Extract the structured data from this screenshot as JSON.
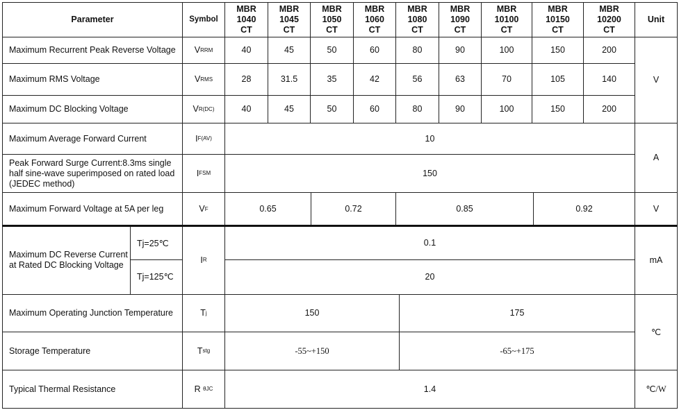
{
  "header": {
    "parameter": "Parameter",
    "symbol": "Symbol",
    "models": [
      "MBR\n1040\nCT",
      "MBR\n1045\nCT",
      "MBR\n1050\nCT",
      "MBR\n1060\nCT",
      "MBR\n1080\nCT",
      "MBR\n1090\nCT",
      "MBR\n10100\nCT",
      "MBR\n10150\nCT",
      "MBR\n10200\nCT"
    ],
    "unit": "Unit"
  },
  "rows": {
    "vrrm": {
      "param": "Maximum Recurrent Peak Reverse Voltage",
      "sym": "V",
      "sub": "RRM",
      "values": [
        "40",
        "45",
        "50",
        "60",
        "80",
        "90",
        "100",
        "150",
        "200"
      ]
    },
    "vrms": {
      "param": "Maximum RMS Voltage",
      "sym": "V",
      "sub": "RMS",
      "values": [
        "28",
        "31.5",
        "35",
        "42",
        "56",
        "63",
        "70",
        "105",
        "140"
      ]
    },
    "vdc": {
      "param": "Maximum DC Blocking Voltage",
      "sym": "V",
      "sub": "R(DC)",
      "values": [
        "40",
        "45",
        "50",
        "60",
        "80",
        "90",
        "100",
        "150",
        "200"
      ]
    },
    "voltage_unit": "V",
    "ifav": {
      "param": "Maximum Average Forward Current",
      "sym": "I",
      "sub": "F(AV)",
      "value": "10"
    },
    "ifsm": {
      "param": "Peak Forward Surge Current:8.3ms single half sine-wave superimposed on rated load (JEDEC method)",
      "sym": "I",
      "sub": "FSM",
      "value": "150"
    },
    "current_unit": "A",
    "vf": {
      "param": "Maximum Forward Voltage at 5A per leg",
      "sym": "V",
      "sub": "F",
      "values": [
        "0.65",
        "0.72",
        "0.85",
        "0.92"
      ],
      "unit": "V"
    },
    "ir": {
      "param": "Maximum DC Reverse Current at Rated DC Blocking Voltage",
      "cond1": "Tj=25℃",
      "cond2": "Tj=125℃",
      "sym": "I",
      "sub": "R",
      "value1": "0.1",
      "value2": "20",
      "unit": "mA"
    },
    "tj": {
      "param": "Maximum Operating Junction Temperature",
      "sym": "T",
      "sub": "j",
      "values": [
        "150",
        "175"
      ]
    },
    "tstg": {
      "param": "Storage Temperature",
      "sym": "T",
      "sub": "stg",
      "values": [
        "-55~+150",
        "-65~+175"
      ]
    },
    "temp_unit": "℃",
    "rth": {
      "param": "Typical Thermal Resistance",
      "sym": "R ",
      "sub": "θJC",
      "value": "1.4",
      "unit": "℃/W"
    }
  }
}
